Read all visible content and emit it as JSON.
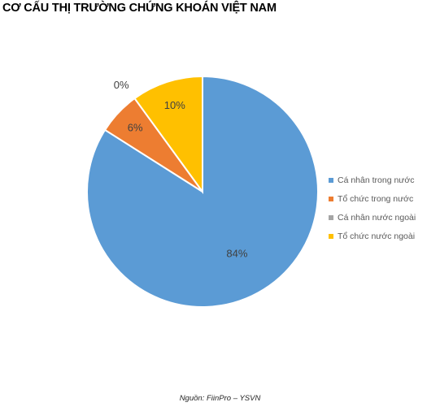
{
  "title": "CƠ CẤU THỊ TRƯỜNG CHỨNG KHOÁN VIỆT NAM",
  "source": "Nguồn: FiinPro – YSVN",
  "chart_data": {
    "type": "pie",
    "title": "CƠ CẤU THỊ TRƯỜNG CHỨNG KHOÁN VIỆT NAM",
    "categories": [
      "Cá nhân trong nước",
      "Tổ chức trong nước",
      "Cá nhân nước ngoài",
      "Tổ chức nước ngoài"
    ],
    "values": [
      84,
      6,
      0,
      10
    ],
    "labels": [
      "84%",
      "6%",
      "0%",
      "10%"
    ],
    "colors": [
      "#5B9BD5",
      "#ED7D31",
      "#A5A5A5",
      "#FFC000"
    ],
    "legend_position": "right",
    "start_angle": "12 o'clock",
    "direction": "clockwise"
  }
}
